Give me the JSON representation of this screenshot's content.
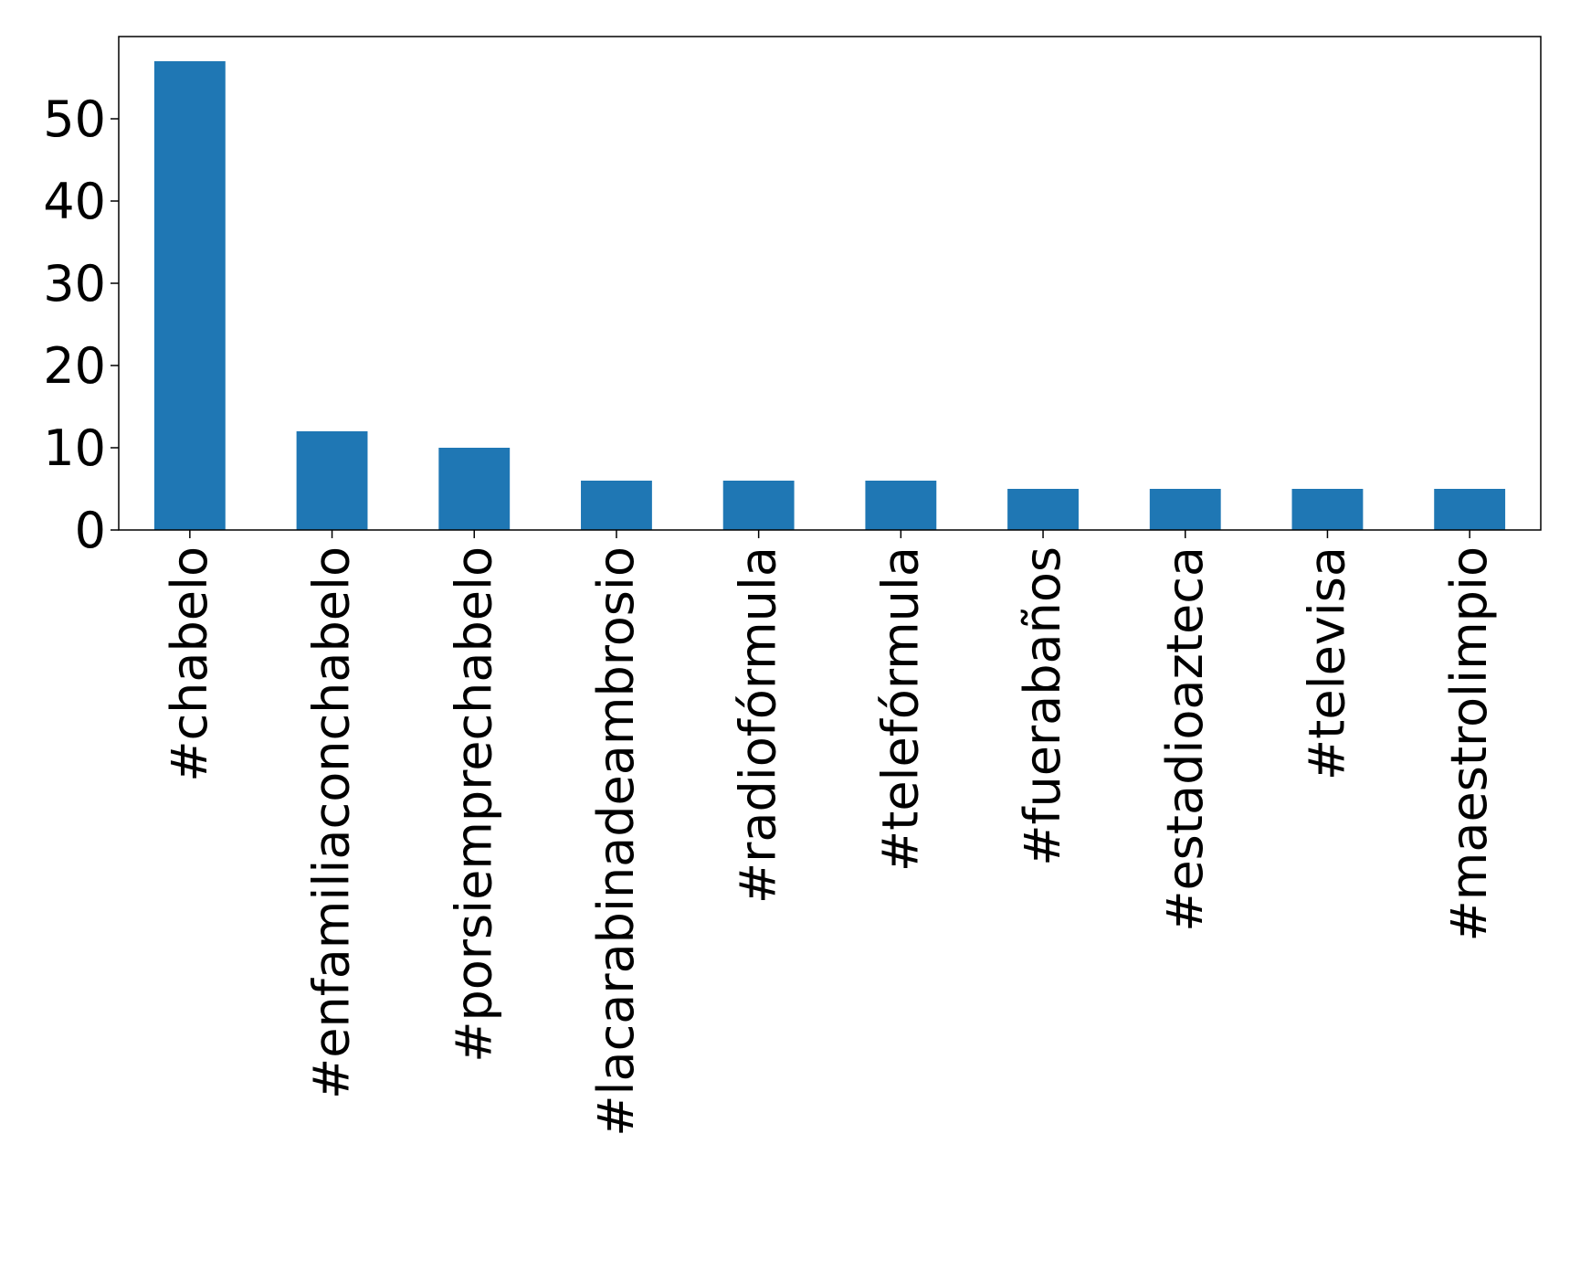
{
  "chart_data": {
    "type": "bar",
    "title": "",
    "xlabel": "",
    "ylabel": "",
    "categories": [
      "#chabelo",
      "#enfamiliaconchabelo",
      "#porsiemprechabelo",
      "#lacarabinadeambrosio",
      "#radiofórmula",
      "#telefórmula",
      "#fuerabaños",
      "#estadioazteca",
      "#televisa",
      "#maestrolimpio"
    ],
    "values": [
      57,
      12,
      10,
      6,
      6,
      6,
      5,
      5,
      5,
      5
    ],
    "ylim": [
      0,
      60
    ],
    "yticks": [
      0,
      10,
      20,
      30,
      40,
      50
    ],
    "grid": false,
    "legend": false,
    "colors": {
      "bar": "#1f77b4",
      "axis": "#000000",
      "background": "#ffffff"
    }
  }
}
